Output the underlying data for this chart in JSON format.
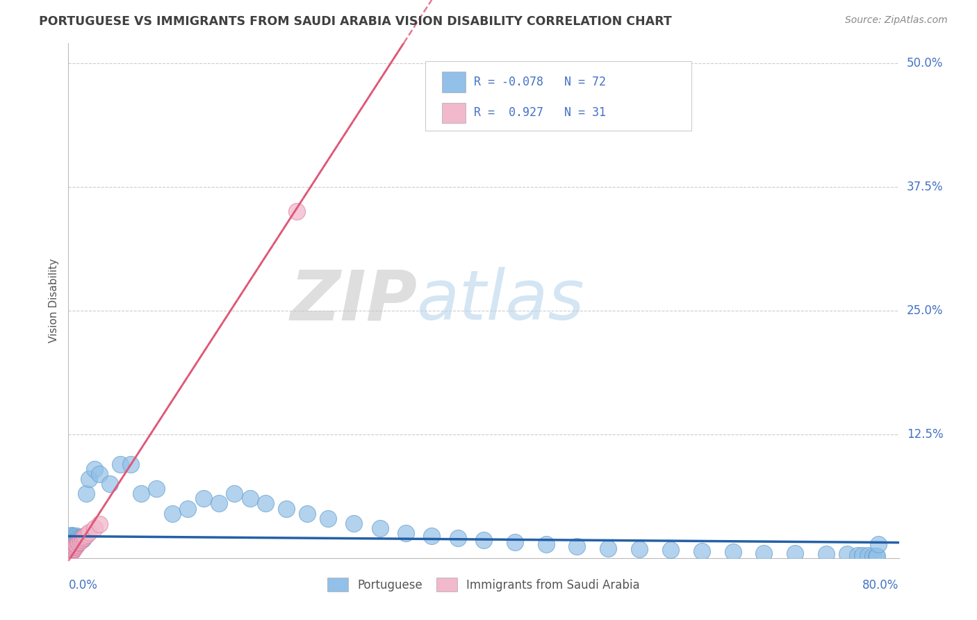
{
  "title": "PORTUGUESE VS IMMIGRANTS FROM SAUDI ARABIA VISION DISABILITY CORRELATION CHART",
  "source": "Source: ZipAtlas.com",
  "ylabel": "Vision Disability",
  "xlim": [
    0.0,
    0.8
  ],
  "ylim": [
    0.0,
    0.52
  ],
  "yticks": [
    0.0,
    0.125,
    0.25,
    0.375,
    0.5
  ],
  "ytick_labels": [
    "",
    "12.5%",
    "25.0%",
    "37.5%",
    "50.0%"
  ],
  "background_color": "#ffffff",
  "blue_r": -0.078,
  "blue_n": 72,
  "pink_r": 0.927,
  "pink_n": 31,
  "blue_scatter_color": "#92C0E8",
  "pink_scatter_color": "#F2B8CB",
  "blue_line_color": "#2460A7",
  "pink_line_color": "#E05878",
  "legend_label_blue": "Portuguese",
  "legend_label_pink": "Immigrants from Saudi Arabia",
  "blue_scatter_x": [
    0.001,
    0.002,
    0.002,
    0.003,
    0.003,
    0.003,
    0.004,
    0.004,
    0.004,
    0.005,
    0.005,
    0.005,
    0.006,
    0.006,
    0.006,
    0.007,
    0.007,
    0.008,
    0.008,
    0.009,
    0.009,
    0.01,
    0.01,
    0.011,
    0.012,
    0.013,
    0.014,
    0.015,
    0.017,
    0.02,
    0.025,
    0.03,
    0.04,
    0.05,
    0.06,
    0.07,
    0.085,
    0.1,
    0.115,
    0.13,
    0.145,
    0.16,
    0.175,
    0.19,
    0.21,
    0.23,
    0.25,
    0.275,
    0.3,
    0.325,
    0.35,
    0.375,
    0.4,
    0.43,
    0.46,
    0.49,
    0.52,
    0.55,
    0.58,
    0.61,
    0.64,
    0.67,
    0.7,
    0.73,
    0.75,
    0.76,
    0.765,
    0.77,
    0.775,
    0.778,
    0.779,
    0.78
  ],
  "blue_scatter_y": [
    0.018,
    0.016,
    0.022,
    0.015,
    0.019,
    0.023,
    0.017,
    0.021,
    0.018,
    0.02,
    0.016,
    0.022,
    0.019,
    0.021,
    0.017,
    0.02,
    0.018,
    0.022,
    0.019,
    0.021,
    0.017,
    0.02,
    0.018,
    0.019,
    0.02,
    0.021,
    0.019,
    0.021,
    0.065,
    0.08,
    0.09,
    0.085,
    0.075,
    0.095,
    0.095,
    0.065,
    0.07,
    0.045,
    0.05,
    0.06,
    0.055,
    0.065,
    0.06,
    0.055,
    0.05,
    0.045,
    0.04,
    0.035,
    0.03,
    0.025,
    0.022,
    0.02,
    0.018,
    0.016,
    0.014,
    0.012,
    0.01,
    0.009,
    0.008,
    0.007,
    0.006,
    0.005,
    0.005,
    0.004,
    0.004,
    0.003,
    0.003,
    0.003,
    0.002,
    0.002,
    0.002,
    0.014
  ],
  "pink_scatter_x": [
    0.001,
    0.002,
    0.002,
    0.003,
    0.003,
    0.004,
    0.004,
    0.004,
    0.005,
    0.005,
    0.005,
    0.006,
    0.006,
    0.007,
    0.007,
    0.008,
    0.008,
    0.009,
    0.009,
    0.01,
    0.011,
    0.012,
    0.013,
    0.014,
    0.015,
    0.016,
    0.018,
    0.02,
    0.025,
    0.03,
    0.22
  ],
  "pink_scatter_y": [
    0.004,
    0.005,
    0.006,
    0.006,
    0.007,
    0.007,
    0.008,
    0.009,
    0.009,
    0.01,
    0.011,
    0.011,
    0.012,
    0.012,
    0.013,
    0.013,
    0.014,
    0.015,
    0.015,
    0.016,
    0.017,
    0.018,
    0.019,
    0.02,
    0.021,
    0.022,
    0.024,
    0.026,
    0.03,
    0.034,
    0.35
  ],
  "pink_line_slope": 1.62,
  "pink_line_intercept": -0.003,
  "blue_line_slope": -0.008,
  "blue_line_intercept": 0.022
}
